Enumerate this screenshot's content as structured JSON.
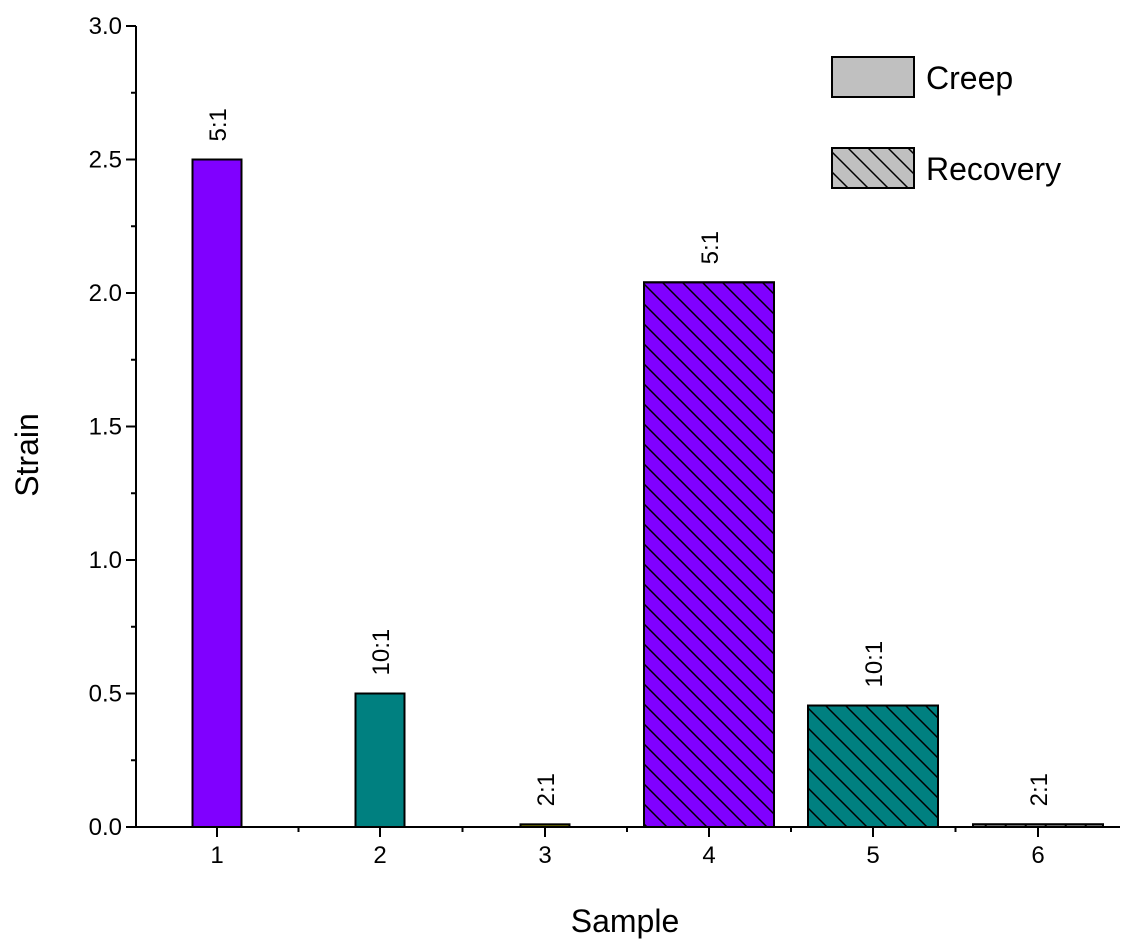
{
  "chart_data": {
    "type": "bar",
    "xlabel": "Sample",
    "ylabel": "Strain",
    "ylim": [
      0,
      3.0
    ],
    "yticks": [
      "0.0",
      "0.5",
      "1.0",
      "1.5",
      "2.0",
      "2.5",
      "3.0"
    ],
    "ytick_values": [
      0,
      0.5,
      1.0,
      1.5,
      2.0,
      2.5,
      3.0
    ],
    "categories": [
      "1",
      "2",
      "3",
      "4",
      "5",
      "6"
    ],
    "values": [
      2.5,
      0.5,
      0.01,
      2.04,
      0.455,
      0.01
    ],
    "bar_labels": [
      "5:1",
      "10:1",
      "2:1",
      "5:1",
      "10:1",
      "2:1"
    ],
    "bar_colors": [
      "#8000ff",
      "#008080",
      "#808000",
      "#8000ff",
      "#008080",
      "#c0c0c0"
    ],
    "bar_kinds": [
      "creep",
      "creep",
      "creep",
      "recovery",
      "recovery",
      "recovery"
    ],
    "legend": [
      {
        "label": "Creep",
        "kind": "creep",
        "color": "#c0c0c0"
      },
      {
        "label": "Recovery",
        "kind": "recovery",
        "color": "#c0c0c0"
      }
    ],
    "legend_position": "top-right",
    "grid": false
  }
}
